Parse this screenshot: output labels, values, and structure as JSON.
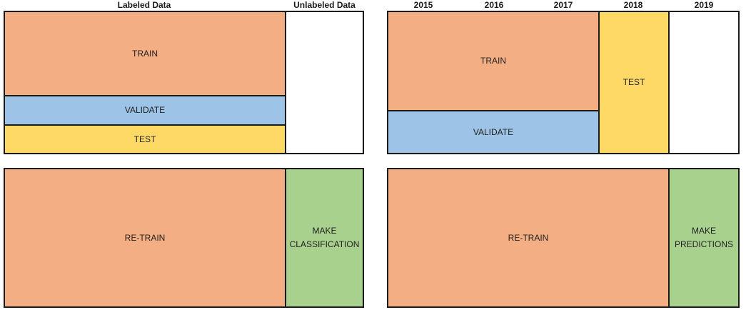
{
  "colors": {
    "train": "#f4ae84",
    "validate": "#9dc3e6",
    "test": "#ffd966",
    "make": "#a9d18e",
    "empty": "#ffffff",
    "border": "#1a1a1a"
  },
  "left": {
    "headers": {
      "labeled": "Labeled Data",
      "unlabeled": "Unlabeled Data"
    },
    "top": {
      "train": "TRAIN",
      "validate": "VALIDATE",
      "test": "TEST"
    },
    "bottom": {
      "retrain": "RE-TRAIN",
      "make": "MAKE\nCLASSIFICATION"
    }
  },
  "right": {
    "headers": {
      "y2015": "2015",
      "y2016": "2016",
      "y2017": "2017",
      "y2018": "2018",
      "y2019": "2019"
    },
    "top": {
      "train": "TRAIN",
      "validate": "VALIDATE",
      "test": "TEST"
    },
    "bottom": {
      "retrain": "RE-TRAIN",
      "make": "MAKE\nPREDICTIONS"
    }
  }
}
